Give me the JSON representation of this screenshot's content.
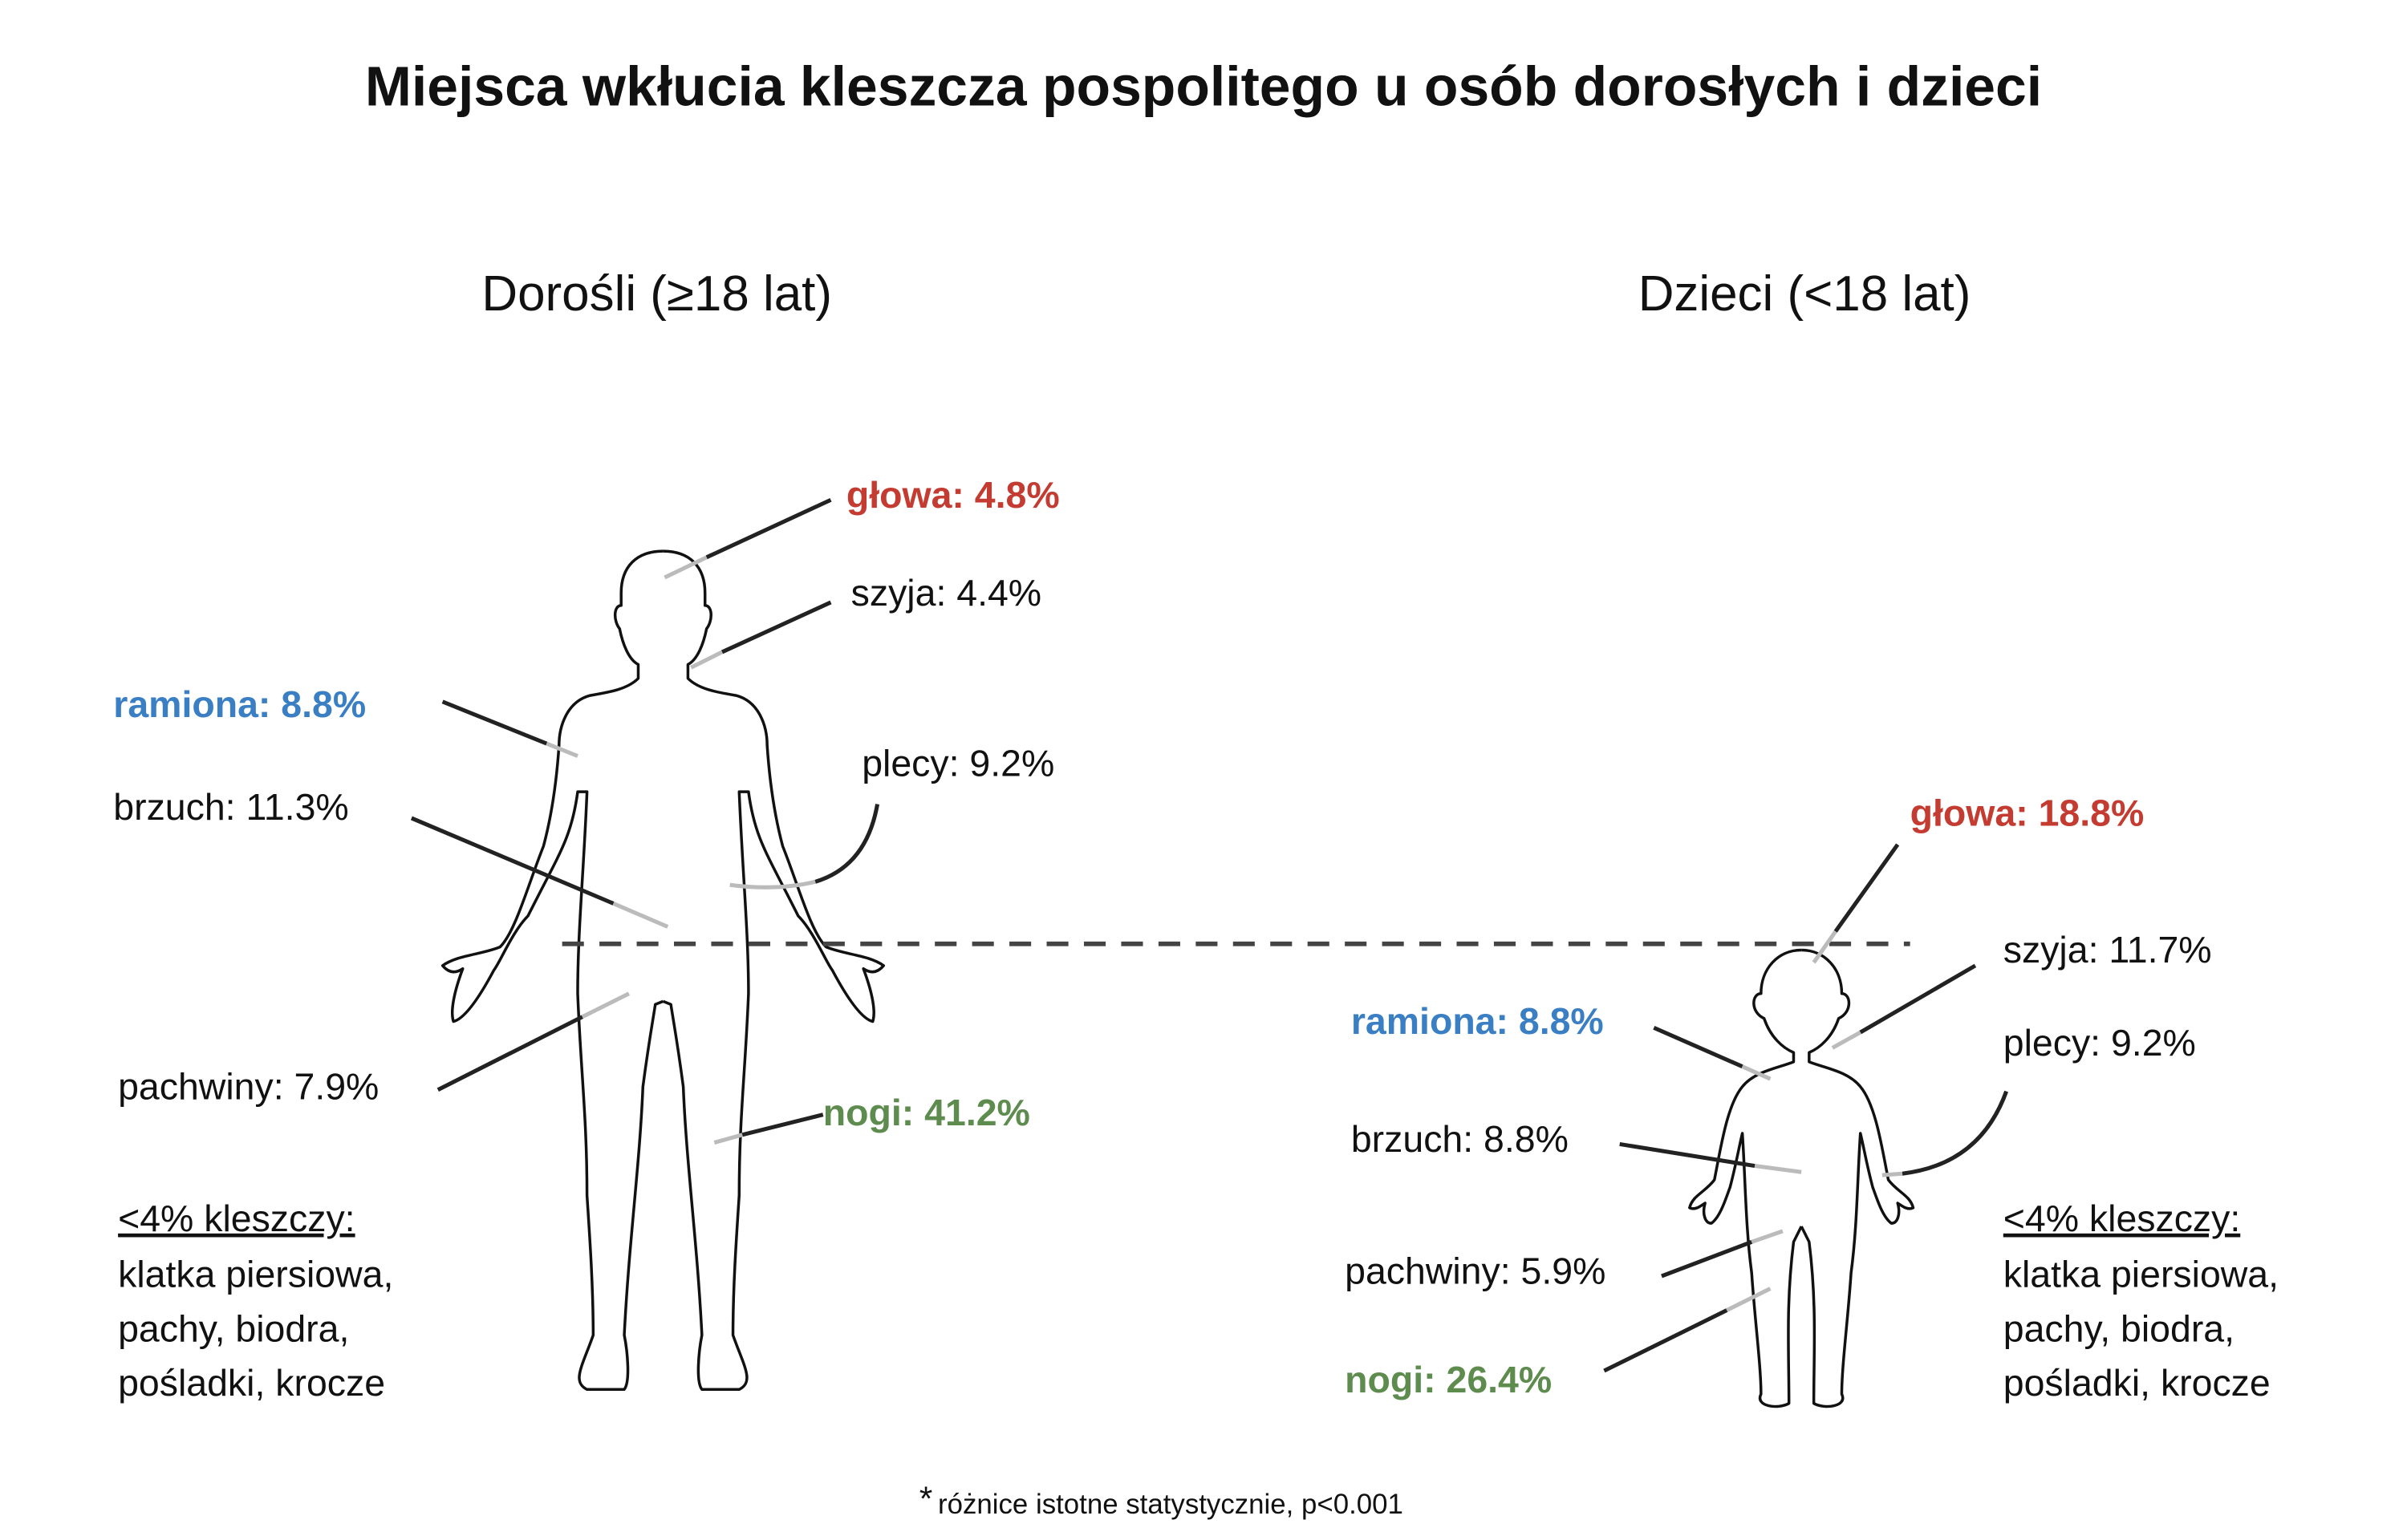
{
  "title": "Miejsca wkłucia kleszcza pospolitego u osób dorosłych i dzieci",
  "colors": {
    "red": "#c43c31",
    "blue": "#3a7fc4",
    "green": "#5e8c4f",
    "text": "#111111",
    "dashed_line": "#444444"
  },
  "adults": {
    "heading": "Dorośli (≥18 lat)",
    "labels": {
      "glowa": "głowa: 4.8%",
      "szyja": "szyja: 4.4%",
      "ramiona": "ramiona: 8.8%",
      "brzuch": "brzuch: 11.3%",
      "plecy": "plecy: 9.2%",
      "pachwiny": "pachwiny: 7.9%",
      "nogi": "nogi: 41.2%"
    },
    "minor_heading": "<4% kleszczy:",
    "minor_lines": [
      "klatka piersiowa,",
      "pachy, biodra,",
      "pośladki, krocze"
    ]
  },
  "children": {
    "heading": "Dzieci (<18 lat)",
    "labels": {
      "glowa": "głowa: 18.8%",
      "szyja": "szyja: 11.7%",
      "ramiona": "ramiona: 8.8%",
      "brzuch": "brzuch: 8.8%",
      "plecy": "plecy: 9.2%",
      "pachwiny": "pachwiny: 5.9%",
      "nogi": "nogi: 26.4%"
    },
    "minor_heading": "<4% kleszczy:",
    "minor_lines": [
      "klatka piersiowa,",
      "pachy, biodra,",
      "pośladki, krocze"
    ]
  },
  "footnote": {
    "asterisk": "*",
    "text": "różnice istotne statystycznie, p<0.001"
  }
}
